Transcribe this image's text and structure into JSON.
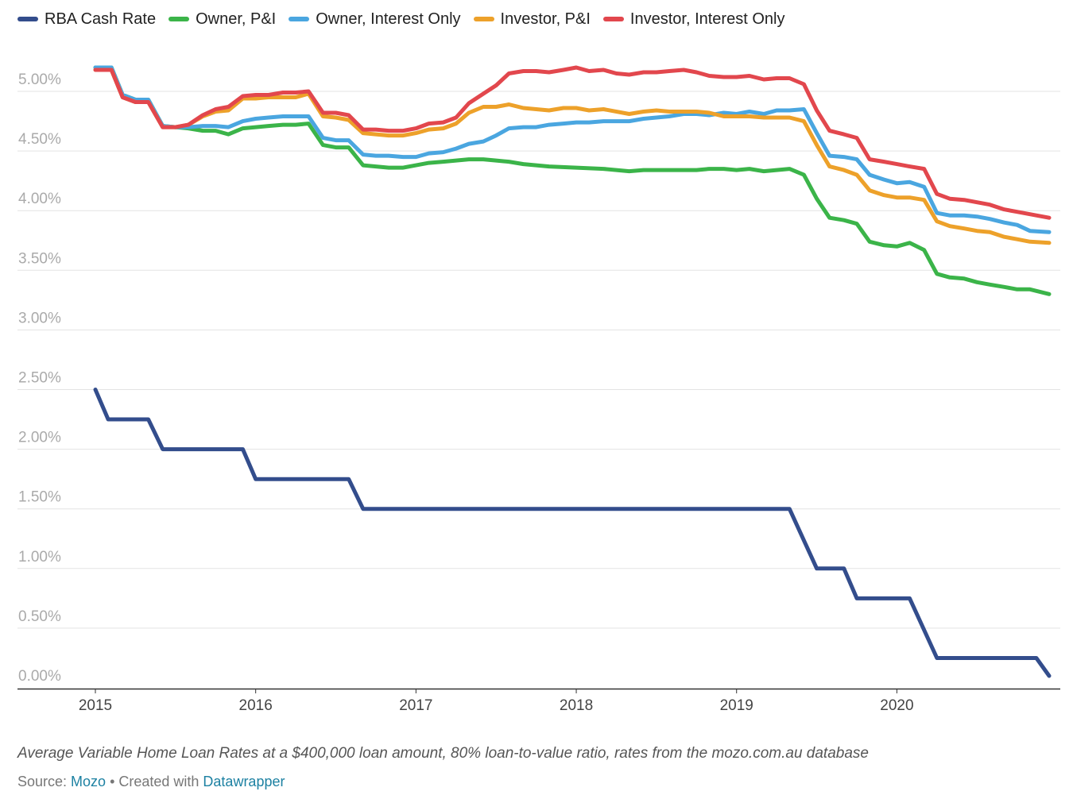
{
  "chart_data": {
    "type": "line",
    "title": "",
    "xlabel": "",
    "ylabel": "",
    "ylim": [
      0,
      5.0
    ],
    "xlim": [
      2015.0,
      2020.95
    ],
    "y_ticks": [
      "0.00%",
      "0.50%",
      "1.00%",
      "1.50%",
      "2.00%",
      "2.50%",
      "3.00%",
      "3.50%",
      "4.00%",
      "4.50%",
      "5.00%"
    ],
    "x_ticks": [
      "2015",
      "2016",
      "2017",
      "2018",
      "2019",
      "2020"
    ],
    "grid": true,
    "legend_placement": "top",
    "series": [
      {
        "name": "RBA Cash Rate",
        "color": "#334d8c",
        "points": [
          [
            2015.0,
            2.5
          ],
          [
            2015.08,
            2.25
          ],
          [
            2015.33,
            2.25
          ],
          [
            2015.42,
            2.0
          ],
          [
            2015.92,
            2.0
          ],
          [
            2016.0,
            1.75
          ],
          [
            2016.58,
            1.75
          ],
          [
            2016.67,
            1.5
          ],
          [
            2019.33,
            1.5
          ],
          [
            2019.5,
            1.0
          ],
          [
            2019.67,
            1.0
          ],
          [
            2019.75,
            0.75
          ],
          [
            2020.08,
            0.75
          ],
          [
            2020.25,
            0.25
          ],
          [
            2020.87,
            0.25
          ],
          [
            2020.95,
            0.1
          ]
        ]
      },
      {
        "name": "Owner, P&I",
        "color": "#3bb449",
        "points": [
          [
            2015.0,
            5.2
          ],
          [
            2015.1,
            5.2
          ],
          [
            2015.17,
            4.97
          ],
          [
            2015.25,
            4.93
          ],
          [
            2015.33,
            4.93
          ],
          [
            2015.42,
            4.71
          ],
          [
            2015.5,
            4.7
          ],
          [
            2015.58,
            4.69
          ],
          [
            2015.67,
            4.67
          ],
          [
            2015.75,
            4.67
          ],
          [
            2015.83,
            4.64
          ],
          [
            2015.92,
            4.69
          ],
          [
            2016.0,
            4.7
          ],
          [
            2016.08,
            4.71
          ],
          [
            2016.17,
            4.72
          ],
          [
            2016.25,
            4.72
          ],
          [
            2016.33,
            4.73
          ],
          [
            2016.42,
            4.55
          ],
          [
            2016.5,
            4.53
          ],
          [
            2016.58,
            4.53
          ],
          [
            2016.67,
            4.38
          ],
          [
            2016.75,
            4.37
          ],
          [
            2016.83,
            4.36
          ],
          [
            2016.92,
            4.36
          ],
          [
            2017.0,
            4.38
          ],
          [
            2017.08,
            4.4
          ],
          [
            2017.17,
            4.41
          ],
          [
            2017.25,
            4.42
          ],
          [
            2017.33,
            4.43
          ],
          [
            2017.42,
            4.43
          ],
          [
            2017.5,
            4.42
          ],
          [
            2017.58,
            4.41
          ],
          [
            2017.67,
            4.39
          ],
          [
            2017.83,
            4.37
          ],
          [
            2018.0,
            4.36
          ],
          [
            2018.17,
            4.35
          ],
          [
            2018.33,
            4.33
          ],
          [
            2018.42,
            4.34
          ],
          [
            2018.58,
            4.34
          ],
          [
            2018.75,
            4.34
          ],
          [
            2018.83,
            4.35
          ],
          [
            2018.92,
            4.35
          ],
          [
            2019.0,
            4.34
          ],
          [
            2019.08,
            4.35
          ],
          [
            2019.17,
            4.33
          ],
          [
            2019.25,
            4.34
          ],
          [
            2019.33,
            4.35
          ],
          [
            2019.42,
            4.3
          ],
          [
            2019.5,
            4.1
          ],
          [
            2019.58,
            3.94
          ],
          [
            2019.67,
            3.92
          ],
          [
            2019.75,
            3.89
          ],
          [
            2019.83,
            3.74
          ],
          [
            2019.92,
            3.71
          ],
          [
            2020.0,
            3.7
          ],
          [
            2020.08,
            3.73
          ],
          [
            2020.17,
            3.67
          ],
          [
            2020.25,
            3.47
          ],
          [
            2020.33,
            3.44
          ],
          [
            2020.42,
            3.43
          ],
          [
            2020.5,
            3.4
          ],
          [
            2020.58,
            3.38
          ],
          [
            2020.67,
            3.36
          ],
          [
            2020.75,
            3.34
          ],
          [
            2020.83,
            3.34
          ],
          [
            2020.95,
            3.3
          ]
        ]
      },
      {
        "name": "Owner, Interest Only",
        "color": "#4aa6e0",
        "points": [
          [
            2015.0,
            5.2
          ],
          [
            2015.1,
            5.2
          ],
          [
            2015.17,
            4.97
          ],
          [
            2015.25,
            4.93
          ],
          [
            2015.33,
            4.93
          ],
          [
            2015.42,
            4.71
          ],
          [
            2015.5,
            4.7
          ],
          [
            2015.58,
            4.7
          ],
          [
            2015.67,
            4.71
          ],
          [
            2015.75,
            4.71
          ],
          [
            2015.83,
            4.7
          ],
          [
            2015.92,
            4.75
          ],
          [
            2016.0,
            4.77
          ],
          [
            2016.08,
            4.78
          ],
          [
            2016.17,
            4.79
          ],
          [
            2016.25,
            4.79
          ],
          [
            2016.33,
            4.79
          ],
          [
            2016.42,
            4.61
          ],
          [
            2016.5,
            4.59
          ],
          [
            2016.58,
            4.59
          ],
          [
            2016.67,
            4.47
          ],
          [
            2016.75,
            4.46
          ],
          [
            2016.83,
            4.46
          ],
          [
            2016.92,
            4.45
          ],
          [
            2017.0,
            4.45
          ],
          [
            2017.08,
            4.48
          ],
          [
            2017.17,
            4.49
          ],
          [
            2017.25,
            4.52
          ],
          [
            2017.33,
            4.56
          ],
          [
            2017.42,
            4.58
          ],
          [
            2017.5,
            4.63
          ],
          [
            2017.58,
            4.69
          ],
          [
            2017.67,
            4.7
          ],
          [
            2017.75,
            4.7
          ],
          [
            2017.83,
            4.72
          ],
          [
            2017.92,
            4.73
          ],
          [
            2018.0,
            4.74
          ],
          [
            2018.08,
            4.74
          ],
          [
            2018.17,
            4.75
          ],
          [
            2018.33,
            4.75
          ],
          [
            2018.42,
            4.77
          ],
          [
            2018.58,
            4.79
          ],
          [
            2018.67,
            4.81
          ],
          [
            2018.75,
            4.81
          ],
          [
            2018.83,
            4.8
          ],
          [
            2018.92,
            4.82
          ],
          [
            2019.0,
            4.81
          ],
          [
            2019.08,
            4.83
          ],
          [
            2019.17,
            4.81
          ],
          [
            2019.25,
            4.84
          ],
          [
            2019.33,
            4.84
          ],
          [
            2019.42,
            4.85
          ],
          [
            2019.5,
            4.65
          ],
          [
            2019.58,
            4.46
          ],
          [
            2019.67,
            4.45
          ],
          [
            2019.75,
            4.43
          ],
          [
            2019.83,
            4.3
          ],
          [
            2019.92,
            4.26
          ],
          [
            2020.0,
            4.23
          ],
          [
            2020.08,
            4.24
          ],
          [
            2020.17,
            4.2
          ],
          [
            2020.25,
            3.98
          ],
          [
            2020.33,
            3.96
          ],
          [
            2020.42,
            3.96
          ],
          [
            2020.5,
            3.95
          ],
          [
            2020.58,
            3.93
          ],
          [
            2020.67,
            3.9
          ],
          [
            2020.75,
            3.88
          ],
          [
            2020.83,
            3.83
          ],
          [
            2020.95,
            3.82
          ]
        ]
      },
      {
        "name": "Investor, P&I",
        "color": "#eda12a",
        "points": [
          [
            2015.0,
            5.18
          ],
          [
            2015.1,
            5.18
          ],
          [
            2015.17,
            4.95
          ],
          [
            2015.25,
            4.91
          ],
          [
            2015.33,
            4.91
          ],
          [
            2015.42,
            4.7
          ],
          [
            2015.5,
            4.7
          ],
          [
            2015.58,
            4.72
          ],
          [
            2015.67,
            4.79
          ],
          [
            2015.75,
            4.83
          ],
          [
            2015.83,
            4.84
          ],
          [
            2015.92,
            4.94
          ],
          [
            2016.0,
            4.94
          ],
          [
            2016.08,
            4.95
          ],
          [
            2016.17,
            4.95
          ],
          [
            2016.25,
            4.95
          ],
          [
            2016.33,
            4.98
          ],
          [
            2016.42,
            4.79
          ],
          [
            2016.5,
            4.78
          ],
          [
            2016.58,
            4.76
          ],
          [
            2016.67,
            4.65
          ],
          [
            2016.75,
            4.64
          ],
          [
            2016.83,
            4.63
          ],
          [
            2016.92,
            4.63
          ],
          [
            2017.0,
            4.65
          ],
          [
            2017.08,
            4.68
          ],
          [
            2017.17,
            4.69
          ],
          [
            2017.25,
            4.73
          ],
          [
            2017.33,
            4.82
          ],
          [
            2017.42,
            4.87
          ],
          [
            2017.5,
            4.87
          ],
          [
            2017.58,
            4.89
          ],
          [
            2017.67,
            4.86
          ],
          [
            2017.83,
            4.84
          ],
          [
            2017.92,
            4.86
          ],
          [
            2018.0,
            4.86
          ],
          [
            2018.08,
            4.84
          ],
          [
            2018.17,
            4.85
          ],
          [
            2018.33,
            4.81
          ],
          [
            2018.42,
            4.83
          ],
          [
            2018.5,
            4.84
          ],
          [
            2018.58,
            4.83
          ],
          [
            2018.75,
            4.83
          ],
          [
            2018.83,
            4.82
          ],
          [
            2018.92,
            4.79
          ],
          [
            2019.0,
            4.79
          ],
          [
            2019.08,
            4.79
          ],
          [
            2019.17,
            4.78
          ],
          [
            2019.25,
            4.78
          ],
          [
            2019.33,
            4.78
          ],
          [
            2019.42,
            4.75
          ],
          [
            2019.5,
            4.55
          ],
          [
            2019.58,
            4.37
          ],
          [
            2019.67,
            4.34
          ],
          [
            2019.75,
            4.3
          ],
          [
            2019.83,
            4.17
          ],
          [
            2019.92,
            4.13
          ],
          [
            2020.0,
            4.11
          ],
          [
            2020.08,
            4.11
          ],
          [
            2020.17,
            4.09
          ],
          [
            2020.25,
            3.91
          ],
          [
            2020.33,
            3.87
          ],
          [
            2020.42,
            3.85
          ],
          [
            2020.5,
            3.83
          ],
          [
            2020.58,
            3.82
          ],
          [
            2020.67,
            3.78
          ],
          [
            2020.75,
            3.76
          ],
          [
            2020.83,
            3.74
          ],
          [
            2020.95,
            3.73
          ]
        ]
      },
      {
        "name": "Investor, Interest Only",
        "color": "#e2474d",
        "points": [
          [
            2015.0,
            5.18
          ],
          [
            2015.1,
            5.18
          ],
          [
            2015.17,
            4.95
          ],
          [
            2015.25,
            4.91
          ],
          [
            2015.33,
            4.91
          ],
          [
            2015.42,
            4.7
          ],
          [
            2015.5,
            4.7
          ],
          [
            2015.58,
            4.72
          ],
          [
            2015.67,
            4.8
          ],
          [
            2015.75,
            4.85
          ],
          [
            2015.83,
            4.87
          ],
          [
            2015.92,
            4.96
          ],
          [
            2016.0,
            4.97
          ],
          [
            2016.08,
            4.97
          ],
          [
            2016.17,
            4.99
          ],
          [
            2016.25,
            4.99
          ],
          [
            2016.33,
            5.0
          ],
          [
            2016.42,
            4.82
          ],
          [
            2016.5,
            4.82
          ],
          [
            2016.58,
            4.8
          ],
          [
            2016.67,
            4.68
          ],
          [
            2016.75,
            4.68
          ],
          [
            2016.83,
            4.67
          ],
          [
            2016.92,
            4.67
          ],
          [
            2017.0,
            4.69
          ],
          [
            2017.08,
            4.73
          ],
          [
            2017.17,
            4.74
          ],
          [
            2017.25,
            4.78
          ],
          [
            2017.33,
            4.9
          ],
          [
            2017.42,
            4.98
          ],
          [
            2017.5,
            5.05
          ],
          [
            2017.58,
            5.15
          ],
          [
            2017.67,
            5.17
          ],
          [
            2017.75,
            5.17
          ],
          [
            2017.83,
            5.16
          ],
          [
            2017.92,
            5.18
          ],
          [
            2018.0,
            5.2
          ],
          [
            2018.08,
            5.17
          ],
          [
            2018.17,
            5.18
          ],
          [
            2018.25,
            5.15
          ],
          [
            2018.33,
            5.14
          ],
          [
            2018.42,
            5.16
          ],
          [
            2018.5,
            5.16
          ],
          [
            2018.58,
            5.17
          ],
          [
            2018.67,
            5.18
          ],
          [
            2018.75,
            5.16
          ],
          [
            2018.83,
            5.13
          ],
          [
            2018.92,
            5.12
          ],
          [
            2019.0,
            5.12
          ],
          [
            2019.08,
            5.13
          ],
          [
            2019.17,
            5.1
          ],
          [
            2019.25,
            5.11
          ],
          [
            2019.33,
            5.11
          ],
          [
            2019.42,
            5.06
          ],
          [
            2019.5,
            4.84
          ],
          [
            2019.58,
            4.67
          ],
          [
            2019.67,
            4.64
          ],
          [
            2019.75,
            4.61
          ],
          [
            2019.83,
            4.43
          ],
          [
            2019.92,
            4.41
          ],
          [
            2020.0,
            4.39
          ],
          [
            2020.08,
            4.37
          ],
          [
            2020.17,
            4.35
          ],
          [
            2020.25,
            4.14
          ],
          [
            2020.33,
            4.1
          ],
          [
            2020.42,
            4.09
          ],
          [
            2020.5,
            4.07
          ],
          [
            2020.58,
            4.05
          ],
          [
            2020.67,
            4.01
          ],
          [
            2020.75,
            3.99
          ],
          [
            2020.83,
            3.97
          ],
          [
            2020.95,
            3.94
          ]
        ]
      }
    ]
  },
  "caption": "Average Variable Home Loan Rates at a $400,000 loan amount, 80% loan-to-value ratio, rates from the mozo.com.au database",
  "source": {
    "prefix": "Source: ",
    "source_link": "Mozo",
    "separator": " • Created with ",
    "tool_link": "Datawrapper"
  }
}
